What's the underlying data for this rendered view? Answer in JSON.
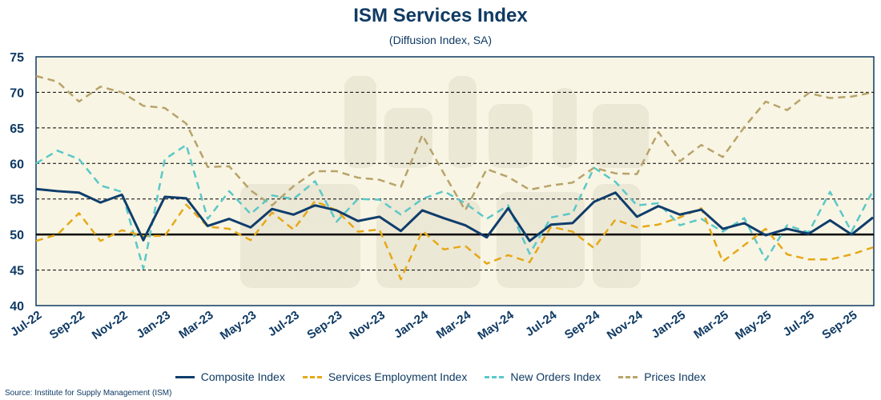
{
  "chart_data": {
    "type": "line",
    "title": "ISM Services Index",
    "subtitle": "(Diffusion Index, SA)",
    "source": "Source: Institute for Supply Management (ISM)",
    "ylim": [
      40,
      75
    ],
    "yticks": [
      40,
      45,
      50,
      55,
      60,
      65,
      70,
      75
    ],
    "reference_line": 50,
    "grid": true,
    "legend_position": "bottom",
    "x": [
      "Jul-22",
      "Aug-22",
      "Sep-22",
      "Oct-22",
      "Nov-22",
      "Dec-22",
      "Jan-23",
      "Feb-23",
      "Mar-23",
      "Apr-23",
      "May-23",
      "Jun-23",
      "Jul-23",
      "Aug-23",
      "Sep-23",
      "Oct-23",
      "Nov-23",
      "Dec-23",
      "Jan-24",
      "Feb-24",
      "Mar-24",
      "Apr-24",
      "May-24",
      "Jun-24",
      "Jul-24",
      "Aug-24",
      "Sep-24",
      "Oct-24",
      "Nov-24",
      "Dec-24",
      "Jan-25",
      "Feb-25",
      "Mar-25",
      "Apr-25",
      "May-25",
      "Jun-25",
      "Jul-25",
      "Aug-25",
      "Sep-25",
      "Oct-25"
    ],
    "xtick_labels": [
      "Jul-22",
      "Sep-22",
      "Nov-22",
      "Jan-23",
      "Mar-23",
      "May-23",
      "Jul-23",
      "Sep-23",
      "Nov-23",
      "Jan-24",
      "Mar-24",
      "May-24",
      "Jul-24",
      "Sep-24",
      "Nov-24",
      "Jan-25",
      "Mar-25",
      "May-25",
      "Jul-25",
      "Sep-25"
    ],
    "series": [
      {
        "name": "Composite Index",
        "color": "#0f3d6b",
        "dashed": false,
        "values": [
          56.4,
          56.1,
          55.9,
          54.5,
          55.6,
          49.2,
          55.3,
          55.1,
          51.2,
          52.2,
          51.0,
          53.6,
          52.8,
          54.1,
          53.4,
          51.9,
          52.5,
          50.5,
          53.4,
          52.3,
          51.3,
          49.6,
          53.7,
          49.1,
          51.4,
          51.6,
          54.6,
          55.9,
          52.5,
          54.0,
          52.8,
          53.5,
          50.8,
          51.6,
          49.9,
          50.8,
          50.1,
          52.0,
          50.0,
          52.4
        ]
      },
      {
        "name": "Services Employment Index",
        "color": "#e6a817",
        "dashed": true,
        "values": [
          49.1,
          50.0,
          53.0,
          49.1,
          50.6,
          49.8,
          49.8,
          54.2,
          51.1,
          50.8,
          49.2,
          53.1,
          50.7,
          54.7,
          53.4,
          50.4,
          50.7,
          43.7,
          50.5,
          47.9,
          48.4,
          45.9,
          47.1,
          46.1,
          51.1,
          50.4,
          48.1,
          52.1,
          51.0,
          51.4,
          52.4,
          53.7,
          46.2,
          48.5,
          50.8,
          47.2,
          46.5,
          46.5,
          47.2,
          48.2
        ]
      },
      {
        "name": "New Orders Index",
        "color": "#5bc8c8",
        "dashed": true,
        "values": [
          60.0,
          61.8,
          60.6,
          56.9,
          56.0,
          45.2,
          60.6,
          62.6,
          52.2,
          56.1,
          52.9,
          55.5,
          55.0,
          57.5,
          51.8,
          55.0,
          54.9,
          52.8,
          55.0,
          56.1,
          54.4,
          52.2,
          54.1,
          47.3,
          52.4,
          53.0,
          59.4,
          57.4,
          54.1,
          54.4,
          51.3,
          52.2,
          50.4,
          52.3,
          46.4,
          51.3,
          50.3,
          56.0,
          50.4,
          56.2
        ]
      },
      {
        "name": "Prices Index",
        "color": "#b8a36a",
        "dashed": true,
        "values": [
          72.3,
          71.5,
          68.7,
          70.8,
          70.0,
          68.1,
          67.8,
          65.6,
          59.5,
          59.6,
          56.2,
          54.1,
          56.8,
          58.9,
          58.9,
          58.0,
          57.7,
          56.7,
          64.0,
          58.6,
          53.4,
          59.2,
          58.1,
          56.3,
          56.9,
          57.3,
          59.4,
          58.6,
          58.5,
          64.4,
          60.3,
          62.6,
          60.9,
          65.1,
          68.7,
          67.5,
          69.9,
          69.2,
          69.4,
          70.0
        ]
      }
    ]
  }
}
